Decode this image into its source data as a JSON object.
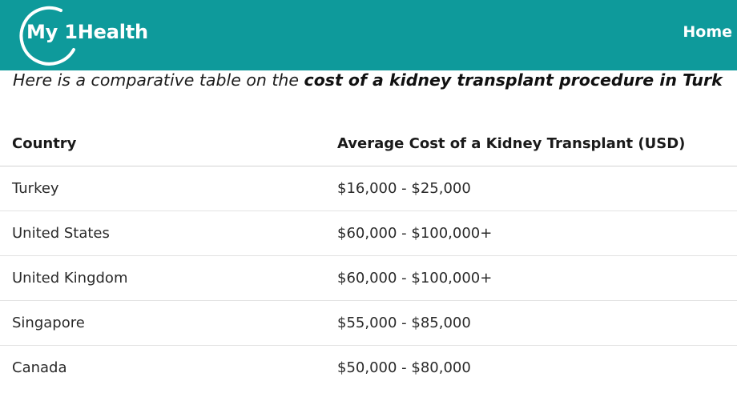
{
  "header": {
    "logo_text": "My 1Health",
    "nav": {
      "home_label": "Home"
    },
    "colors": {
      "background": "#0e9a9b",
      "text": "#ffffff"
    }
  },
  "intro": {
    "text_plain": "Here is a comparative table on the ",
    "text_bold": "cost of a kidney transplant procedure in Turk"
  },
  "table": {
    "headers": {
      "country": "Country",
      "cost": "Average Cost of a Kidney Transplant (USD)"
    },
    "rows": [
      {
        "country": "Turkey",
        "cost": "$16,000 - $25,000"
      },
      {
        "country": "United States",
        "cost": "$60,000 - $100,000+"
      },
      {
        "country": "United Kingdom",
        "cost": "$60,000 - $100,000+"
      },
      {
        "country": "Singapore",
        "cost": "$55,000 - $85,000"
      },
      {
        "country": "Canada",
        "cost": "$50,000 - $80,000"
      }
    ]
  }
}
